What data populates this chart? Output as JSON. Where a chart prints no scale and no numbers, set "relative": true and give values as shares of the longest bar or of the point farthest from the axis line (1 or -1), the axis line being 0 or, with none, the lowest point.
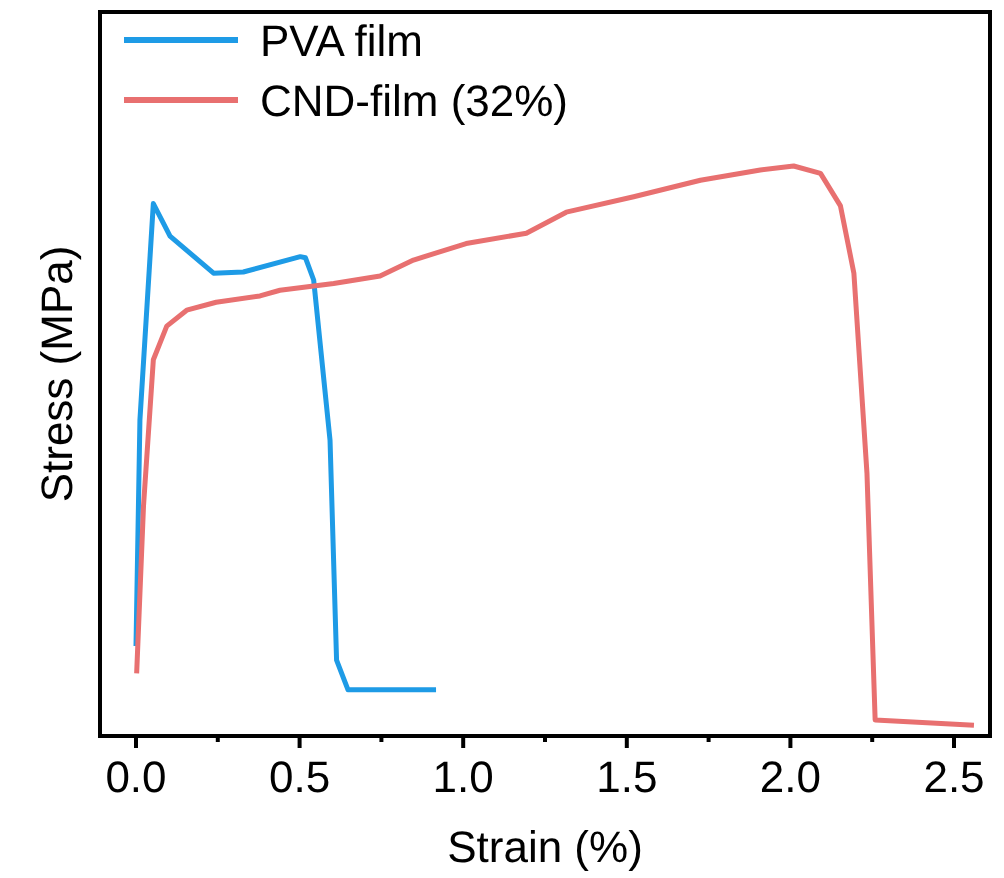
{
  "chart_data": {
    "type": "line",
    "xlabel": "Strain (%)",
    "ylabel": "Stress (MPa)",
    "relative": true,
    "xlim": [
      -0.11,
      2.61
    ],
    "xticks": [
      {
        "value": 0,
        "label": "0.0"
      },
      {
        "value": 0.5,
        "label": "0.5"
      },
      {
        "value": 1,
        "label": "1.0"
      },
      {
        "value": 1.5,
        "label": "1.5"
      },
      {
        "value": 2,
        "label": "2.0"
      },
      {
        "value": 2.5,
        "label": "2.5"
      }
    ],
    "legend": "top left",
    "grid": false,
    "series": [
      {
        "name": "PVA film",
        "color": "#1e9be6",
        "x": [
          0,
          0.012,
          0.053,
          0.104,
          0.237,
          0.328,
          0.502,
          0.518,
          0.543,
          0.593,
          0.613,
          0.648,
          0.917
        ],
        "values": [
          0.158,
          0.554,
          0.934,
          0.877,
          0.812,
          0.814,
          0.841,
          0.839,
          0.8,
          0.519,
          0.133,
          0.081,
          0.081
        ]
      },
      {
        "name": "CND-film (32%)",
        "color": "#e87070",
        "x": [
          0.002,
          0.023,
          0.053,
          0.094,
          0.155,
          0.245,
          0.379,
          0.44,
          0.604,
          0.746,
          0.848,
          1.009,
          1.193,
          1.315,
          1.521,
          1.725,
          1.908,
          2.01,
          2.092,
          2.153,
          2.194,
          2.234,
          2.259,
          2.561
        ],
        "values": [
          0.11,
          0.404,
          0.66,
          0.719,
          0.747,
          0.761,
          0.772,
          0.782,
          0.794,
          0.807,
          0.835,
          0.864,
          0.882,
          0.919,
          0.946,
          0.975,
          0.993,
          1,
          0.987,
          0.93,
          0.812,
          0.461,
          0.028,
          0.019
        ]
      }
    ]
  }
}
